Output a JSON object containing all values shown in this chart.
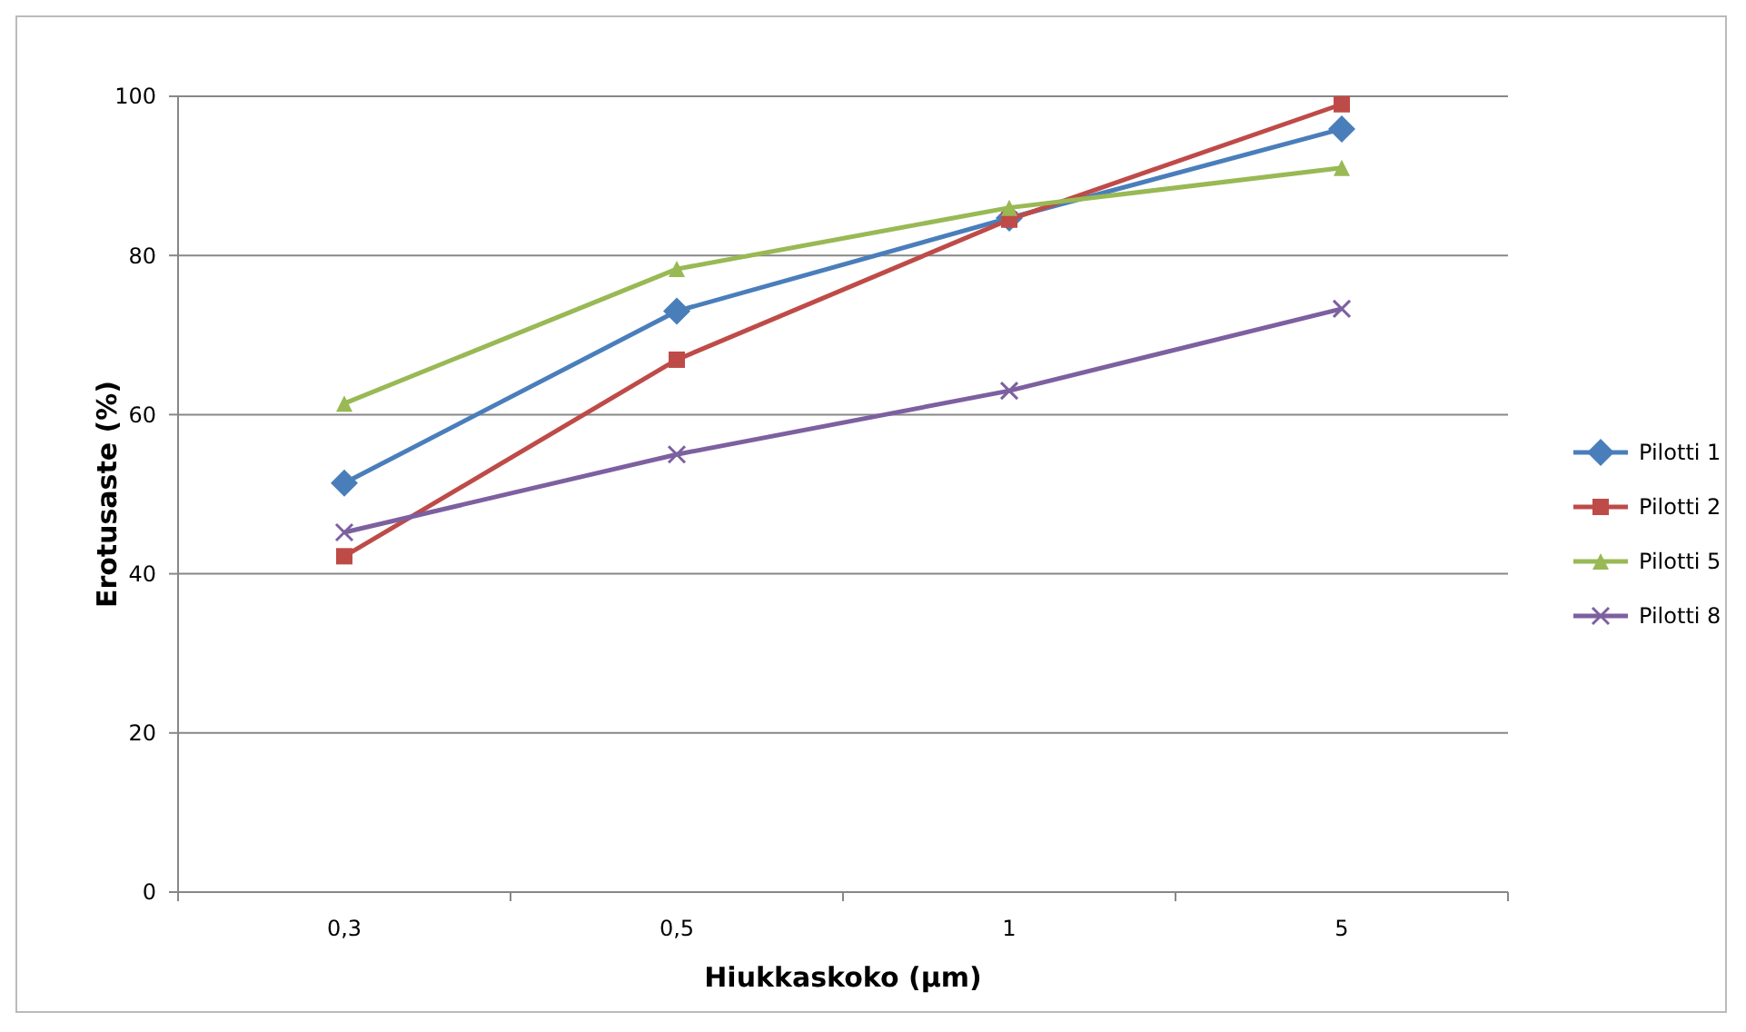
{
  "chart_data": {
    "type": "line",
    "xlabel": "Hiukkaskoko (µm)",
    "ylabel": "Erotusaste (%)",
    "categories": [
      "0,3",
      "0,5",
      "1",
      "5"
    ],
    "series": [
      {
        "name": "Pilotti 1",
        "color": "#4a7ebb",
        "marker": "diamond",
        "values": [
          51.4,
          73,
          84.7,
          95.9
        ]
      },
      {
        "name": "Pilotti 2",
        "color": "#be4b48",
        "marker": "square",
        "values": [
          42.2,
          66.9,
          84.5,
          99
        ]
      },
      {
        "name": "Pilotti 5",
        "color": "#98b954",
        "marker": "triangle",
        "values": [
          61.4,
          78.3,
          86,
          91
        ]
      },
      {
        "name": "Pilotti 8",
        "color": "#7d60a0",
        "marker": "cross",
        "values": [
          45.2,
          55,
          63,
          73.3
        ]
      }
    ],
    "ylim": [
      0,
      100
    ],
    "yticks": [
      0,
      20,
      40,
      60,
      80,
      100
    ],
    "grid": "y",
    "legend": "right",
    "line_style": "solid"
  }
}
